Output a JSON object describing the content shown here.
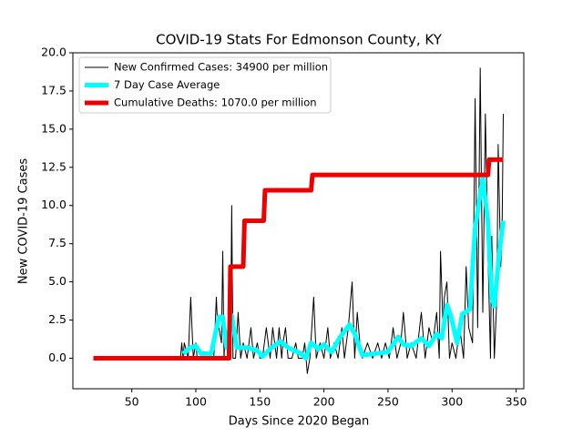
{
  "chart_data": {
    "type": "line",
    "title": "COVID-19 Stats For Edmonson County, KY",
    "x_label": "Days Since 2020 Began",
    "y_label": "New COVID-19 Cases",
    "xlim": [
      4,
      356
    ],
    "ylim": [
      -2,
      20
    ],
    "xticks": [
      50,
      100,
      150,
      200,
      250,
      300,
      350
    ],
    "yticks": [
      {
        "value": 0,
        "label": "0.0"
      },
      {
        "value": 2.5,
        "label": "2.5"
      },
      {
        "value": 5,
        "label": "5.0"
      },
      {
        "value": 7.5,
        "label": "7.5"
      },
      {
        "value": 10,
        "label": "10.0"
      },
      {
        "value": 12.5,
        "label": "12.5"
      },
      {
        "value": 15,
        "label": "15.0"
      },
      {
        "value": 17.5,
        "label": "17.5"
      },
      {
        "value": 20,
        "label": "20.0"
      }
    ],
    "legend": "upper left",
    "series": [
      {
        "name": "New Confirmed Cases: 34900 per million",
        "color": "#000000",
        "linewidth": 1,
        "x": [
          88,
          89,
          90,
          91,
          94,
          96,
          98,
          100,
          101,
          104,
          110,
          114,
          116,
          117,
          118,
          120,
          121,
          122,
          123,
          125,
          127,
          128,
          129,
          131,
          133,
          135,
          137,
          140,
          143,
          145,
          148,
          150,
          152,
          155,
          158,
          160,
          163,
          165,
          167,
          168,
          170,
          172,
          175,
          178,
          180,
          183,
          185,
          187,
          189,
          192,
          194,
          197,
          200,
          203,
          205,
          208,
          211,
          214,
          216,
          219,
          222,
          224,
          226,
          228,
          230,
          234,
          238,
          242,
          245,
          248,
          251,
          254,
          257,
          260,
          262,
          265,
          268,
          272,
          276,
          279,
          282,
          285,
          288,
          290,
          291,
          293,
          294,
          296,
          298,
          300,
          303,
          306,
          309,
          311,
          313,
          316,
          318,
          320,
          322,
          324,
          326,
          328,
          330,
          331,
          333,
          335,
          336,
          338,
          339,
          340
        ],
        "values": [
          0,
          1,
          0,
          1,
          0,
          4,
          0,
          1,
          0,
          0,
          0,
          0,
          4,
          2,
          2,
          1,
          7,
          0,
          2,
          0,
          0,
          10,
          0,
          0,
          3,
          0,
          1,
          0,
          2,
          0,
          1,
          0,
          0,
          2,
          0,
          2,
          0,
          2,
          0,
          1,
          2,
          0,
          0,
          1,
          0,
          0,
          1,
          -1,
          0,
          4,
          0,
          1,
          0,
          2,
          0,
          1,
          0,
          2,
          0,
          2,
          5,
          0,
          3,
          1,
          0,
          1,
          0,
          1,
          0,
          1,
          0,
          2,
          0,
          1,
          3,
          0,
          1,
          0,
          3,
          0,
          2,
          1,
          3,
          0,
          7,
          2,
          4,
          5,
          0,
          1,
          0,
          2,
          0,
          6,
          2,
          1,
          17,
          2,
          19,
          3,
          16,
          7,
          0,
          8,
          0,
          4,
          14,
          6,
          8,
          16
        ]
      },
      {
        "name": "7 Day Case Average",
        "color": "#00ffff",
        "linewidth": 5,
        "x": [
          90,
          96,
          100,
          104,
          112,
          118,
          121,
          124,
          128,
          132,
          140,
          148,
          152,
          158,
          166,
          172,
          182,
          186,
          190,
          196,
          200,
          206,
          212,
          220,
          224,
          230,
          250,
          258,
          262,
          268,
          276,
          282,
          288,
          292,
          296,
          299,
          304,
          308,
          314,
          318,
          324,
          328,
          331,
          333,
          337,
          340
        ],
        "values": [
          0.3,
          0.7,
          0.8,
          0.3,
          0.3,
          2.7,
          2.7,
          0.7,
          2.8,
          0.7,
          0.7,
          0.5,
          0.1,
          0.6,
          1.1,
          0.7,
          0.3,
          0,
          1,
          0.6,
          0.9,
          0.4,
          1.3,
          2.2,
          1.6,
          0.2,
          0.4,
          1.4,
          0.9,
          0.8,
          1.3,
          0.8,
          1.6,
          1.3,
          3.5,
          2.8,
          1,
          2.9,
          3.2,
          8.5,
          11.8,
          9,
          4,
          3.4,
          7,
          9
        ]
      },
      {
        "name": "Cumulative Deaths: 1070.0 per million",
        "color": "#ee0000",
        "linewidth": 5,
        "x": [
          20,
          126,
          127,
          137,
          138,
          153,
          154,
          190,
          191,
          328,
          329,
          340
        ],
        "values": [
          0,
          0,
          6,
          6,
          9,
          9,
          11,
          11,
          12,
          12,
          13,
          13
        ]
      }
    ]
  }
}
